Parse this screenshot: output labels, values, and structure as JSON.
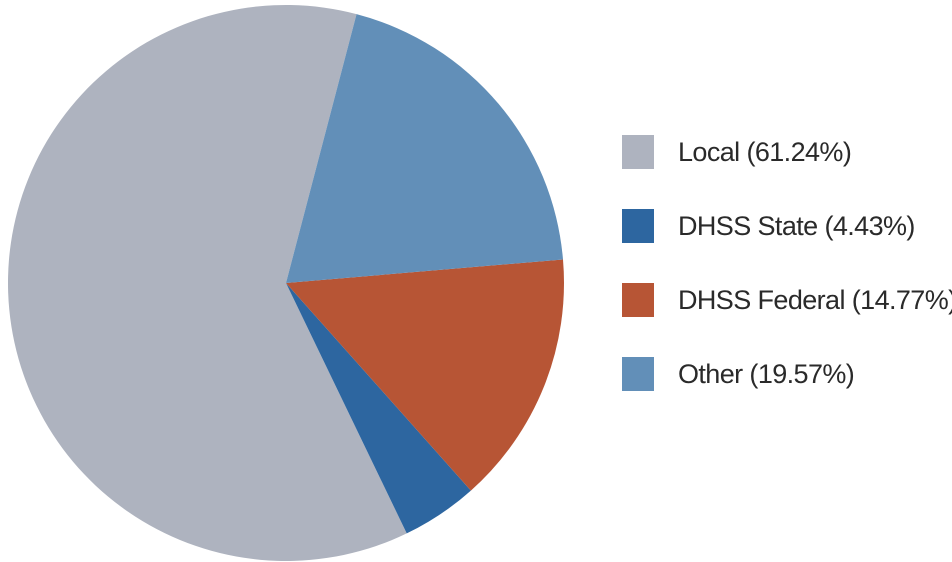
{
  "chart_data": {
    "type": "pie",
    "title": "",
    "start_angle_deg": -75.3,
    "direction": "counterclockwise",
    "legend_position": "right",
    "slices": [
      {
        "label": "Local (61.24%)",
        "value": 61.24,
        "color": "#aeb3bf"
      },
      {
        "label": "DHSS State (4.43%)",
        "value": 4.43,
        "color": "#2d66a0"
      },
      {
        "label": "DHSS Federal (14.77%)",
        "value": 14.77,
        "color": "#b75535"
      },
      {
        "label": "Other (19.57%)",
        "value": 19.57,
        "color": "#628fb8"
      }
    ]
  }
}
